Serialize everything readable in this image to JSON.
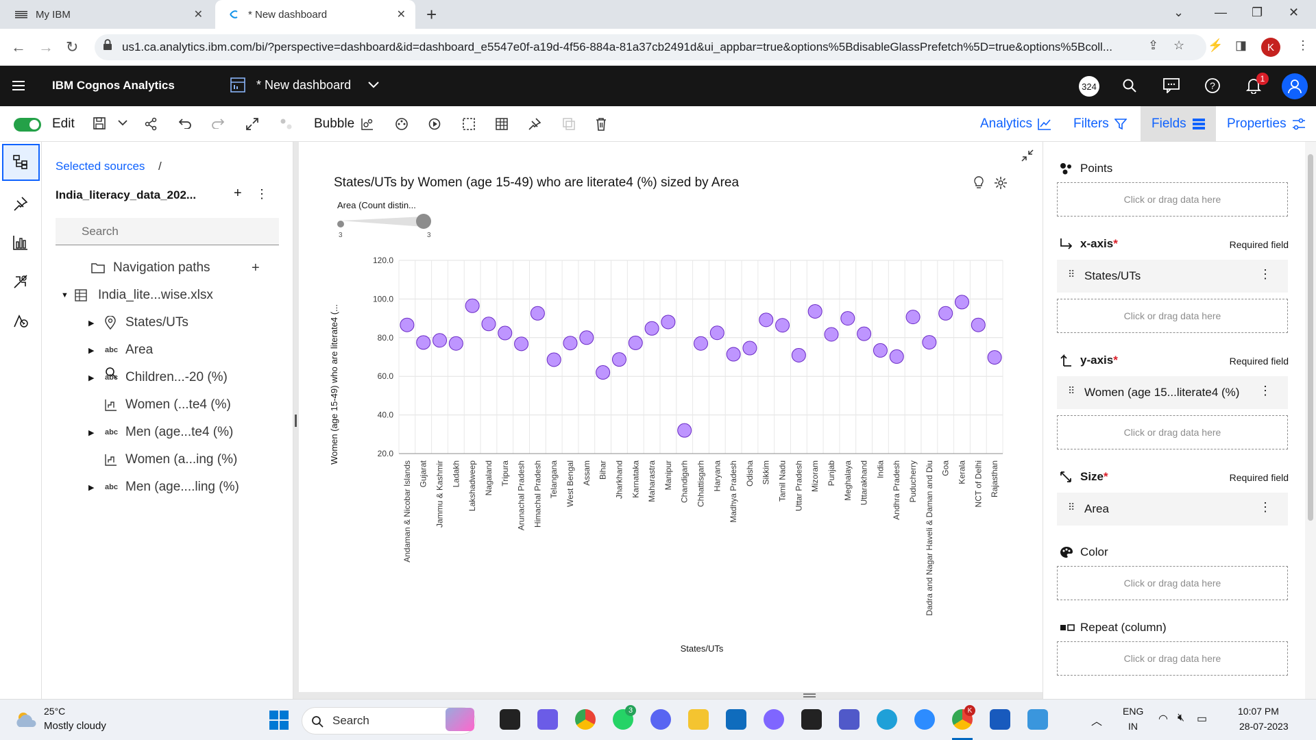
{
  "browser": {
    "tabs": [
      {
        "label": "My IBM",
        "icon": "ibm-logo-icon"
      },
      {
        "label": "* New dashboard",
        "icon": "cognos-icon"
      }
    ],
    "url": "us1.ca.analytics.ibm.com/bi/?perspective=dashboard&id=dashboard_e5547e0f-a19d-4f56-884a-81a37cb2491d&ui_appbar=true&options%5BdisableGlassPrefetch%5D=true&options%5Bcoll...",
    "profile_initial": "K"
  },
  "appbar": {
    "product": "IBM Cognos Analytics",
    "dashboard_title": "* New dashboard",
    "counter": "324",
    "notifications": "1"
  },
  "toolbar": {
    "edit_label": "Edit",
    "viz_type": "Bubble",
    "analytics": "Analytics",
    "filters": "Filters",
    "fields": "Fields",
    "properties": "Properties"
  },
  "sources": {
    "breadcrumb": "Selected sources",
    "breadcrumb_sep": "/",
    "source_name": "India_literacy_data_202...",
    "search_placeholder": "Search",
    "tree": [
      {
        "label": "Navigation paths",
        "icon": "folder-icon",
        "caret": false,
        "level": 1
      },
      {
        "label": "India_lite...wise.xlsx",
        "icon": "table-icon",
        "caret": "down",
        "level": 0
      },
      {
        "label": "States/UTs",
        "icon": "location-icon",
        "caret": "right",
        "level": 1
      },
      {
        "label": "Area",
        "icon": "abc",
        "caret": "right",
        "level": 1
      },
      {
        "label": "Children...-20 (%)",
        "icon": "abc",
        "caret": "right",
        "level": 1
      },
      {
        "label": "Women (...te4 (%)",
        "icon": "measure-icon",
        "caret": false,
        "level": 1
      },
      {
        "label": "Men (age...te4 (%)",
        "icon": "abc",
        "caret": "right",
        "level": 1
      },
      {
        "label": "Women (a...ing (%)",
        "icon": "measure-icon",
        "caret": false,
        "level": 1
      },
      {
        "label": "Men (age....ling (%)",
        "icon": "abc",
        "caret": "right",
        "level": 1
      }
    ]
  },
  "widget": {
    "title": "States/UTs by Women (age 15-49) who are literate4 (%) sized by Area",
    "legend_label": "Area (Count distin...",
    "legend_min": "3",
    "legend_max": "3"
  },
  "chart_data": {
    "type": "scatter",
    "xlabel": "States/UTs",
    "ylabel": "Women (age 15-49) who are literate4 (...",
    "ylim": [
      20,
      120
    ],
    "yticks": [
      "120.0",
      "100.0",
      "80.0",
      "60.0",
      "40.0",
      "20.0"
    ],
    "bubble_color": "#be95ff",
    "categories": [
      "Andaman & Nicobar Islands",
      "Gujarat",
      "Jammu & Kashmir",
      "Ladakh",
      "Lakshadweep",
      "Nagaland",
      "Tripura",
      "Arunachal Pradesh",
      "Himachal Pradesh",
      "Telangana",
      "West Bengal",
      "Assam",
      "Bihar",
      "Jharkhand",
      "Karnataka",
      "Maharastra",
      "Manipur",
      "Chandigarh",
      "Chhattisgarh",
      "Haryana",
      "Madhya Pradesh",
      "Odisha",
      "Sikkim",
      "Tamil Nadu",
      "Uttar Pradesh",
      "Mizoram",
      "Punjab",
      "Meghalaya",
      "Uttarakhand",
      "India",
      "Andhra Pradesh",
      "Puducherry",
      "Dadra and Nagar Haveli & Daman and Diu",
      "Goa",
      "Kerala",
      "NCT of Delhi",
      "Rajasthan"
    ],
    "values": [
      86.6,
      77.5,
      78.6,
      77.0,
      96.5,
      87.1,
      82.4,
      76.8,
      92.6,
      68.6,
      77.2,
      80.0,
      62.0,
      68.7,
      77.3,
      84.8,
      88.1,
      32.0,
      77.0,
      82.5,
      71.4,
      74.6,
      89.2,
      86.4,
      70.9,
      93.6,
      81.7,
      90.0,
      82.0,
      73.4,
      70.2,
      90.7,
      77.6,
      92.6,
      98.4,
      86.6,
      69.8
    ]
  },
  "fields_panel": {
    "required_text": "Required field",
    "drop_text": "Click or drag data here",
    "points": "Points",
    "x_axis": "x-axis",
    "x_field": "States/UTs",
    "y_axis": "y-axis",
    "y_field": "Women (age 15...literate4 (%)",
    "size": "Size",
    "size_field": "Area",
    "color": "Color",
    "repeat": "Repeat (column)",
    "asterisk": "*"
  },
  "taskbar": {
    "temp": "25°C",
    "weather": "Mostly cloudy",
    "search": "Search",
    "lang1": "ENG",
    "lang2": "IN",
    "time": "10:07 PM",
    "date": "28-07-2023",
    "whatsapp_badge": "3",
    "chrome_badge": "K"
  }
}
